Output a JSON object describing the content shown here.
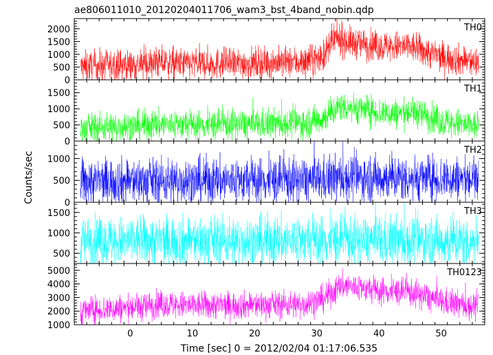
{
  "chart_data": {
    "type": "line",
    "title": "ae806011010_20120204011706_wam3_bst_4band_nobin.qdp",
    "xlabel": "Time [sec] 0 = 2012/02/04 01:17:06.535",
    "ylabel": "Counts/sec",
    "xlim": [
      -9,
      57
    ],
    "x_ticks": [
      0,
      10,
      20,
      30,
      40,
      50
    ],
    "panels": [
      {
        "name": "TH0",
        "color": "#ff0000",
        "ylim": [
          0,
          2400
        ],
        "y_ticks": [
          0,
          500,
          1000,
          1500,
          2000
        ],
        "profile": {
          "t": [
            -8,
            -5,
            0,
            5,
            10,
            20,
            28,
            31,
            33,
            36,
            40,
            45,
            50,
            56
          ],
          "v": [
            500,
            550,
            580,
            650,
            620,
            650,
            700,
            900,
            1600,
            1450,
            1300,
            1300,
            900,
            650
          ]
        },
        "spread": 300
      },
      {
        "name": "TH1",
        "color": "#00ff00",
        "ylim": [
          0,
          1900
        ],
        "y_ticks": [
          0,
          500,
          1000,
          1500
        ],
        "profile": {
          "t": [
            -8,
            -5,
            0,
            5,
            10,
            20,
            28,
            31,
            34,
            38,
            42,
            46,
            50,
            56
          ],
          "v": [
            380,
            420,
            450,
            520,
            500,
            520,
            560,
            700,
            1100,
            950,
            850,
            900,
            600,
            450
          ]
        },
        "spread": 230
      },
      {
        "name": "TH2",
        "color": "#0000ff",
        "ylim": [
          0,
          1400
        ],
        "y_ticks": [
          0,
          500,
          1000
        ],
        "profile": {
          "t": [
            -8,
            0,
            10,
            20,
            30,
            34,
            40,
            50,
            56
          ],
          "v": [
            480,
            480,
            490,
            500,
            500,
            560,
            560,
            540,
            520
          ]
        },
        "spread": 260
      },
      {
        "name": "TH3",
        "color": "#00ffff",
        "ylim": [
          250,
          1750
        ],
        "y_ticks": [
          500,
          1000,
          1500
        ],
        "profile": {
          "t": [
            -8,
            0,
            10,
            20,
            30,
            40,
            50,
            56
          ],
          "v": [
            800,
            800,
            810,
            800,
            820,
            810,
            800,
            800
          ]
        },
        "spread": 300
      },
      {
        "name": "TH0123",
        "color": "#ff00ff",
        "ylim": [
          1000,
          5500
        ],
        "y_ticks": [
          1000,
          2000,
          3000,
          4000,
          5000
        ],
        "profile": {
          "t": [
            -8,
            -5,
            0,
            5,
            10,
            20,
            28,
            31,
            34,
            37,
            40,
            45,
            50,
            56
          ],
          "v": [
            2000,
            2100,
            2250,
            2500,
            2400,
            2450,
            2500,
            2900,
            3900,
            3700,
            3500,
            3400,
            2700,
            2300
          ]
        },
        "spread": 500
      }
    ]
  }
}
